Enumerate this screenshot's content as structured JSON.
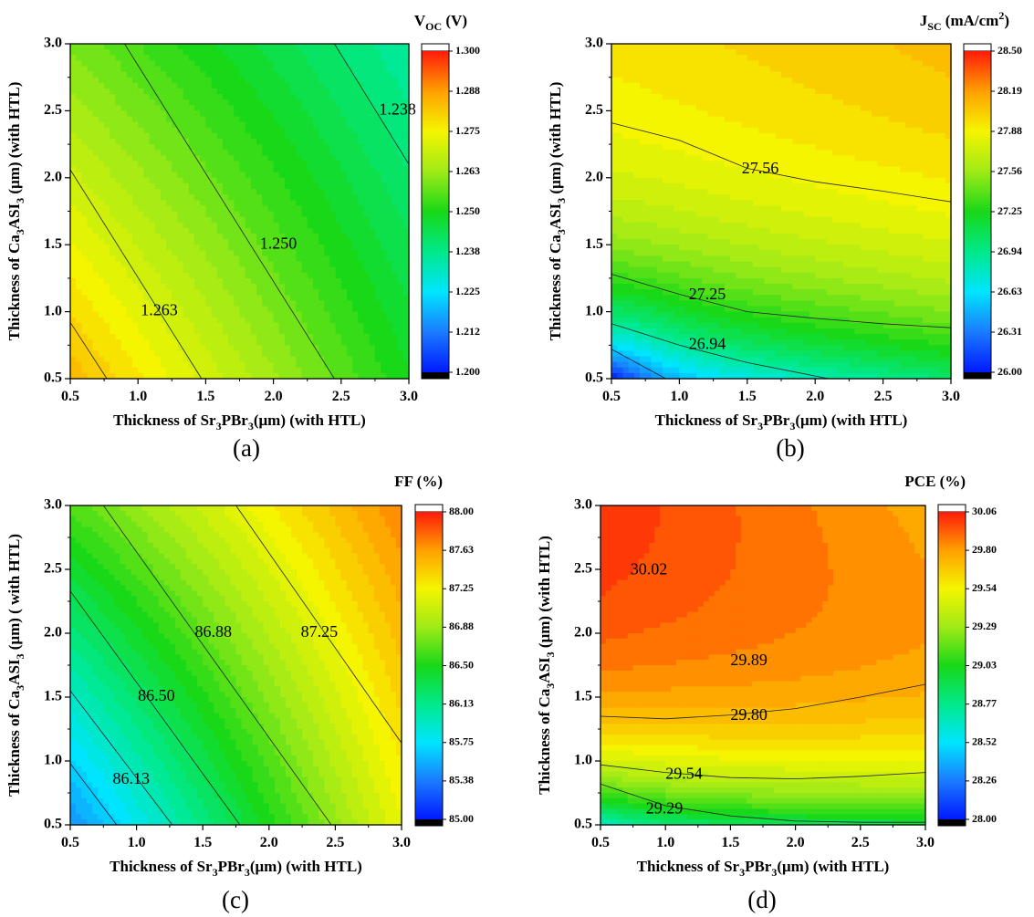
{
  "chart_data": [
    {
      "type": "heatmap",
      "panel_label": "(a)",
      "colorbar_title": "V",
      "colorbar_title_sub": "OC",
      "colorbar_unit": " (V)",
      "xlabel_pre": "Thickness of Sr",
      "xlabel_s1": "3",
      "xlabel_mid": "PBr",
      "xlabel_s2": "3",
      "xlabel_post": "(μm) (with HTL)",
      "ylabel_pre": "Thickness of Ca",
      "ylabel_s1": "3",
      "ylabel_mid": "ASI",
      "ylabel_s2": "3",
      "ylabel_post": " (μm) (with HTL)",
      "xlim": [
        0.5,
        3.0
      ],
      "ylim": [
        0.5,
        3.0
      ],
      "x_ticks": [
        "0.5",
        "1.0",
        "1.5",
        "2.0",
        "2.5",
        "3.0"
      ],
      "y_ticks": [
        "0.5",
        "1.0",
        "1.5",
        "2.0",
        "2.5",
        "3.0"
      ],
      "colorbar_range": [
        1.2,
        1.3
      ],
      "colorbar_ticks": [
        "1.300",
        "1.288",
        "1.275",
        "1.263",
        "1.250",
        "1.238",
        "1.225",
        "1.212",
        "1.200"
      ],
      "corner_values": {
        "x0y0": 1.284,
        "x1y0": 1.249,
        "x0y1": 1.259,
        "x1y1": 1.235
      },
      "contour_lines": [
        {
          "value": "1.238",
          "points": [
            [
              2.45,
              3.0
            ],
            [
              3.0,
              2.1
            ]
          ],
          "label_at": [
            2.78,
            2.5
          ]
        },
        {
          "value": "1.250",
          "points": [
            [
              0.9,
              3.0
            ],
            [
              2.45,
              0.5
            ]
          ],
          "label_at": [
            1.9,
            1.5
          ]
        },
        {
          "value": "1.263",
          "points": [
            [
              0.5,
              2.06
            ],
            [
              1.47,
              0.5
            ]
          ],
          "label_at": [
            1.02,
            1.0
          ]
        },
        {
          "value": "",
          "points": [
            [
              0.5,
              0.92
            ],
            [
              0.77,
              0.5
            ]
          ]
        }
      ]
    },
    {
      "type": "heatmap",
      "panel_label": "(b)",
      "colorbar_title": "J",
      "colorbar_title_sub": "SC",
      "colorbar_unit": " (mA/cm",
      "colorbar_unit_sup": "2",
      "colorbar_unit_end": ")",
      "xlabel_pre": "Thickness of Sr",
      "xlabel_s1": "3",
      "xlabel_mid": "PBr",
      "xlabel_s2": "3",
      "xlabel_post": "(μm) (with HTL)",
      "ylabel_pre": "Thickness of Ca",
      "ylabel_s1": "3",
      "ylabel_mid": "ASI",
      "ylabel_s2": "3",
      "ylabel_post": " (μm) (with HTL)",
      "xlim": [
        0.5,
        3.0
      ],
      "ylim": [
        0.5,
        3.0
      ],
      "x_ticks": [
        "0.5",
        "1.0",
        "1.5",
        "2.0",
        "2.5",
        "3.0"
      ],
      "y_ticks": [
        "0.5",
        "1.0",
        "1.5",
        "2.0",
        "2.5",
        "3.0"
      ],
      "colorbar_range": [
        26.0,
        28.5
      ],
      "colorbar_ticks": [
        "28.50",
        "28.19",
        "27.88",
        "27.56",
        "27.25",
        "26.94",
        "26.63",
        "26.31",
        "26.00"
      ],
      "contour_lines": [
        {
          "value": "27.56",
          "points": [
            [
              0.5,
              2.41
            ],
            [
              1.0,
              2.28
            ],
            [
              1.5,
              2.07
            ],
            [
              2.0,
              1.97
            ],
            [
              2.5,
              1.9
            ],
            [
              3.0,
              1.82
            ]
          ],
          "label_at": [
            1.46,
            2.06
          ]
        },
        {
          "value": "27.25",
          "points": [
            [
              0.5,
              1.28
            ],
            [
              1.0,
              1.13
            ],
            [
              1.5,
              1.0
            ],
            [
              2.0,
              0.95
            ],
            [
              2.5,
              0.91
            ],
            [
              3.0,
              0.88
            ]
          ],
          "label_at": [
            1.07,
            1.12
          ]
        },
        {
          "value": "26.94",
          "points": [
            [
              0.5,
              0.91
            ],
            [
              1.0,
              0.75
            ],
            [
              1.5,
              0.62
            ],
            [
              2.0,
              0.52
            ],
            [
              2.1,
              0.5
            ]
          ],
          "label_at": [
            1.07,
            0.75
          ]
        },
        {
          "value": "",
          "points": [
            [
              0.5,
              0.72
            ],
            [
              0.9,
              0.5
            ]
          ]
        }
      ]
    },
    {
      "type": "heatmap",
      "panel_label": "(c)",
      "colorbar_title": "FF (%)",
      "xlabel_pre": "Thickness of Sr",
      "xlabel_s1": "3",
      "xlabel_mid": "PBr",
      "xlabel_s2": "3",
      "xlabel_post": "(μm) (with HTL)",
      "ylabel_pre": "Thickness of Ca",
      "ylabel_s1": "3",
      "ylabel_mid": "ASI",
      "ylabel_s2": "3",
      "ylabel_post": " (μm) ( with HTL)",
      "xlim": [
        0.5,
        3.0
      ],
      "ylim": [
        0.5,
        3.0
      ],
      "x_ticks": [
        "0.5",
        "1.0",
        "1.5",
        "2.0",
        "2.5",
        "3.0"
      ],
      "y_ticks": [
        "0.5",
        "1.0",
        "1.5",
        "2.0",
        "2.5",
        "3.0"
      ],
      "colorbar_range": [
        85.0,
        88.0
      ],
      "colorbar_ticks": [
        "88.00",
        "87.63",
        "87.25",
        "86.88",
        "86.50",
        "86.13",
        "85.75",
        "85.38",
        "85.00"
      ],
      "corner_values": {
        "x0y0": 85.45,
        "x1y0": 87.2,
        "x0y1": 86.65,
        "x1y1": 87.7
      },
      "contour_lines": [
        {
          "value": "87.25",
          "points": [
            [
              1.75,
              3.0
            ],
            [
              3.0,
              1.14
            ]
          ],
          "label_at": [
            2.24,
            2.0
          ]
        },
        {
          "value": "86.88",
          "points": [
            [
              0.75,
              3.0
            ],
            [
              2.47,
              0.5
            ]
          ],
          "label_at": [
            1.44,
            2.0
          ]
        },
        {
          "value": "86.50",
          "points": [
            [
              0.5,
              2.33
            ],
            [
              1.78,
              0.5
            ]
          ],
          "label_at": [
            1.01,
            1.5
          ]
        },
        {
          "value": "86.13",
          "points": [
            [
              0.5,
              1.55
            ],
            [
              1.27,
              0.5
            ]
          ],
          "label_at": [
            0.82,
            0.85
          ]
        },
        {
          "value": "",
          "points": [
            [
              0.5,
              0.98
            ],
            [
              0.85,
              0.5
            ]
          ]
        }
      ]
    },
    {
      "type": "heatmap",
      "panel_label": "(d)",
      "colorbar_title": "PCE (%)",
      "xlabel_pre": "Thickness of Sr",
      "xlabel_s1": "3",
      "xlabel_mid": "PBr",
      "xlabel_s2": "3",
      "xlabel_post": "(μm) (with HTL)",
      "ylabel_pre": "Thickness of Ca",
      "ylabel_s1": "3",
      "ylabel_mid": "ASI",
      "ylabel_s2": "3",
      "ylabel_post": " (μm) (with HTL)",
      "xlim": [
        0.5,
        3.0
      ],
      "ylim": [
        0.5,
        3.0
      ],
      "x_ticks": [
        "0.5",
        "1.0",
        "1.5",
        "2.0",
        "2.5",
        "3.0"
      ],
      "y_ticks": [
        "0.5",
        "1.0",
        "1.5",
        "2.0",
        "2.5",
        "3.0"
      ],
      "colorbar_range": [
        28.0,
        30.06
      ],
      "colorbar_ticks": [
        "30.06",
        "29.80",
        "29.54",
        "29.29",
        "29.03",
        "28.77",
        "28.52",
        "28.26",
        "28.00"
      ],
      "contour_lines": [
        {
          "value": "29.80",
          "points": [
            [
              0.5,
              1.35
            ],
            [
              1.0,
              1.33
            ],
            [
              1.5,
              1.36
            ],
            [
              2.0,
              1.41
            ],
            [
              2.5,
              1.5
            ],
            [
              3.0,
              1.6
            ]
          ],
          "label_at": [
            1.5,
            1.35
          ]
        },
        {
          "value": "29.54",
          "points": [
            [
              0.5,
              0.97
            ],
            [
              1.0,
              0.91
            ],
            [
              1.5,
              0.87
            ],
            [
              2.0,
              0.86
            ],
            [
              2.5,
              0.88
            ],
            [
              3.0,
              0.91
            ]
          ],
          "label_at": [
            1.0,
            0.89
          ]
        },
        {
          "value": "",
          "points": [
            [
              0.5,
              0.82
            ],
            [
              1.0,
              0.65
            ],
            [
              1.5,
              0.57
            ],
            [
              2.0,
              0.53
            ],
            [
              2.5,
              0.52
            ],
            [
              3.0,
              0.52
            ]
          ]
        }
      ],
      "value_labels": [
        {
          "text": "30.02",
          "at": [
            0.73,
            2.49
          ]
        },
        {
          "text": "29.89",
          "at": [
            1.5,
            1.78
          ]
        },
        {
          "text": "29.29",
          "at": [
            0.85,
            0.62
          ]
        }
      ]
    }
  ]
}
